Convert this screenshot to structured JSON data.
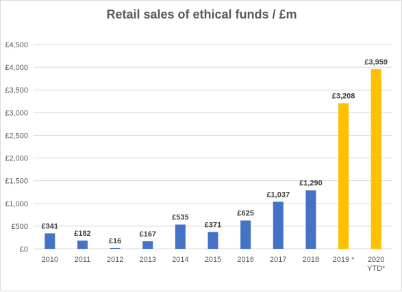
{
  "chart_data": {
    "type": "bar",
    "title": "Retail sales of ethical funds / £m",
    "xlabel": "",
    "ylabel": "",
    "categories": [
      "2010",
      "2011",
      "2012",
      "2013",
      "2014",
      "2015",
      "2016",
      "2017",
      "2018",
      "2019 *",
      "2020 YTD*"
    ],
    "values": [
      341,
      182,
      16,
      167,
      535,
      371,
      625,
      1037,
      1290,
      3208,
      3959
    ],
    "data_labels": [
      "£341",
      "£182",
      "£16",
      "£167",
      "£535",
      "£371",
      "£625",
      "£1,037",
      "£1,290",
      "£3,208",
      "£3,959"
    ],
    "bar_colors": [
      "#4472c4",
      "#4472c4",
      "#4472c4",
      "#4472c4",
      "#4472c4",
      "#4472c4",
      "#4472c4",
      "#4472c4",
      "#4472c4",
      "#ffc000",
      "#ffc000"
    ],
    "ylim": [
      0,
      4500
    ],
    "yticks": [
      0,
      500,
      1000,
      1500,
      2000,
      2500,
      3000,
      3500,
      4000,
      4500
    ],
    "ytick_labels": [
      "£0",
      "£500",
      "£1,000",
      "£1,500",
      "£2,000",
      "£2,500",
      "£3,000",
      "£3,500",
      "£4,000",
      "£4,500"
    ],
    "grid": true,
    "legend": "none",
    "colors": {
      "gridline": "#d9d9d9",
      "axis_text": "#595959",
      "label_text": "#404040"
    }
  }
}
